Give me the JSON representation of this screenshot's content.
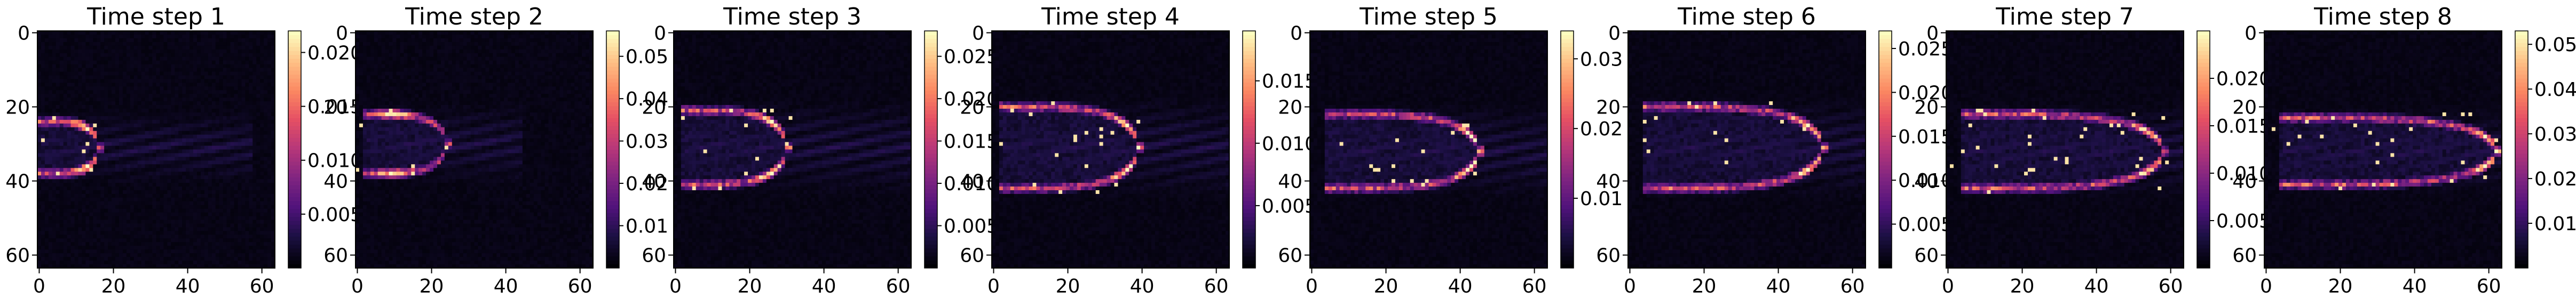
{
  "chart_data": [
    {
      "type": "heatmap",
      "title": "Time step 1",
      "xlabel": "",
      "ylabel": "",
      "grid": false,
      "shape": [
        64,
        64
      ],
      "x_ticks": [
        "0",
        "20",
        "40",
        "60"
      ],
      "y_ticks": [
        "0",
        "20",
        "40",
        "60"
      ],
      "colormap": "magma",
      "colorbar": {
        "min": 0.0,
        "max": 0.022,
        "ticks": [
          0.005,
          0.01,
          0.015,
          0.02
        ],
        "tick_labels": [
          "0.005",
          "0.010",
          "0.015",
          "0.020"
        ]
      },
      "feature": {
        "x_start": 0,
        "x_end": 16,
        "y_center": 31,
        "half_height": 7,
        "peak_x": 12,
        "wake_end": 58
      }
    },
    {
      "type": "heatmap",
      "title": "Time step 2",
      "xlabel": "",
      "ylabel": "",
      "grid": false,
      "shape": [
        64,
        64
      ],
      "x_ticks": [
        "0",
        "20",
        "40",
        "60"
      ],
      "y_ticks": [
        "0",
        "20",
        "40",
        "60"
      ],
      "colormap": "magma",
      "colorbar": {
        "min": 0.0,
        "max": 0.056,
        "ticks": [
          0.01,
          0.02,
          0.03,
          0.04,
          0.05
        ],
        "tick_labels": [
          "0.01",
          "0.02",
          "0.03",
          "0.04",
          "0.05"
        ]
      },
      "feature": {
        "x_start": 2,
        "x_end": 24,
        "y_center": 30,
        "half_height": 8,
        "peak_x": 10,
        "wake_end": 45
      }
    },
    {
      "type": "heatmap",
      "title": "Time step 3",
      "xlabel": "",
      "ylabel": "",
      "grid": false,
      "shape": [
        64,
        64
      ],
      "x_ticks": [
        "0",
        "20",
        "40",
        "60"
      ],
      "y_ticks": [
        "0",
        "20",
        "40",
        "60"
      ],
      "colormap": "magma",
      "colorbar": {
        "min": 0.0,
        "max": 0.028,
        "ticks": [
          0.005,
          0.01,
          0.015,
          0.02,
          0.025
        ],
        "tick_labels": [
          "0.005",
          "0.010",
          "0.015",
          "0.020",
          "0.025"
        ]
      },
      "feature": {
        "x_start": 2,
        "x_end": 30,
        "y_center": 31,
        "half_height": 10,
        "peak_x": 26,
        "wake_end": 64
      }
    },
    {
      "type": "heatmap",
      "title": "Time step 4",
      "xlabel": "",
      "ylabel": "",
      "grid": false,
      "shape": [
        64,
        64
      ],
      "x_ticks": [
        "0",
        "20",
        "40",
        "60"
      ],
      "y_ticks": [
        "0",
        "20",
        "40",
        "60"
      ],
      "colormap": "magma",
      "colorbar": {
        "min": 0.0,
        "max": 0.019,
        "ticks": [
          0.005,
          0.01,
          0.015
        ],
        "tick_labels": [
          "0.005",
          "0.010",
          "0.015"
        ]
      },
      "feature": {
        "x_start": 2,
        "x_end": 39,
        "y_center": 31,
        "half_height": 11,
        "peak_x": 36,
        "wake_end": 64
      }
    },
    {
      "type": "heatmap",
      "title": "Time step 5",
      "xlabel": "",
      "ylabel": "",
      "grid": false,
      "shape": [
        64,
        64
      ],
      "x_ticks": [
        "0",
        "20",
        "40",
        "60"
      ],
      "y_ticks": [
        "0",
        "20",
        "40",
        "60"
      ],
      "colormap": "magma",
      "colorbar": {
        "min": 0.0,
        "max": 0.034,
        "ticks": [
          0.01,
          0.02,
          0.03
        ],
        "tick_labels": [
          "0.01",
          "0.02",
          "0.03"
        ]
      },
      "feature": {
        "x_start": 4,
        "x_end": 45,
        "y_center": 32,
        "half_height": 10,
        "peak_x": 43,
        "wake_end": 64
      }
    },
    {
      "type": "heatmap",
      "title": "Time step 6",
      "xlabel": "",
      "ylabel": "",
      "grid": false,
      "shape": [
        64,
        64
      ],
      "x_ticks": [
        "0",
        "20",
        "40",
        "60"
      ],
      "y_ticks": [
        "0",
        "20",
        "40",
        "60"
      ],
      "colormap": "magma",
      "colorbar": {
        "min": 0.0,
        "max": 0.027,
        "ticks": [
          0.005,
          0.01,
          0.015,
          0.02,
          0.025
        ],
        "tick_labels": [
          "0.005",
          "0.010",
          "0.015",
          "0.020",
          "0.025"
        ]
      },
      "feature": {
        "x_start": 4,
        "x_end": 52,
        "y_center": 31,
        "half_height": 11,
        "peak_x": 48,
        "wake_end": 64
      }
    },
    {
      "type": "heatmap",
      "title": "Time step 7",
      "xlabel": "",
      "ylabel": "",
      "grid": false,
      "shape": [
        64,
        64
      ],
      "x_ticks": [
        "0",
        "20",
        "40",
        "60"
      ],
      "y_ticks": [
        "0",
        "20",
        "40",
        "60"
      ],
      "colormap": "magma",
      "colorbar": {
        "min": 0.0,
        "max": 0.025,
        "ticks": [
          0.005,
          0.01,
          0.015,
          0.02
        ],
        "tick_labels": [
          "0.005",
          "0.010",
          "0.015",
          "0.020"
        ]
      },
      "feature": {
        "x_start": 4,
        "x_end": 58,
        "y_center": 32,
        "half_height": 10,
        "peak_x": 54,
        "wake_end": 64
      }
    },
    {
      "type": "heatmap",
      "title": "Time step 8",
      "xlabel": "",
      "ylabel": "",
      "grid": false,
      "shape": [
        64,
        64
      ],
      "x_ticks": [
        "0",
        "20",
        "40",
        "60"
      ],
      "y_ticks": [
        "0",
        "20",
        "40",
        "60"
      ],
      "colormap": "magma",
      "colorbar": {
        "min": 0.0,
        "max": 0.053,
        "ticks": [
          0.01,
          0.02,
          0.03,
          0.04,
          0.05
        ],
        "tick_labels": [
          "0.01",
          "0.02",
          "0.03",
          "0.04",
          "0.05"
        ]
      },
      "feature": {
        "x_start": 4,
        "x_end": 62,
        "y_center": 32,
        "half_height": 9,
        "peak_x": 60,
        "wake_end": 64
      }
    }
  ]
}
